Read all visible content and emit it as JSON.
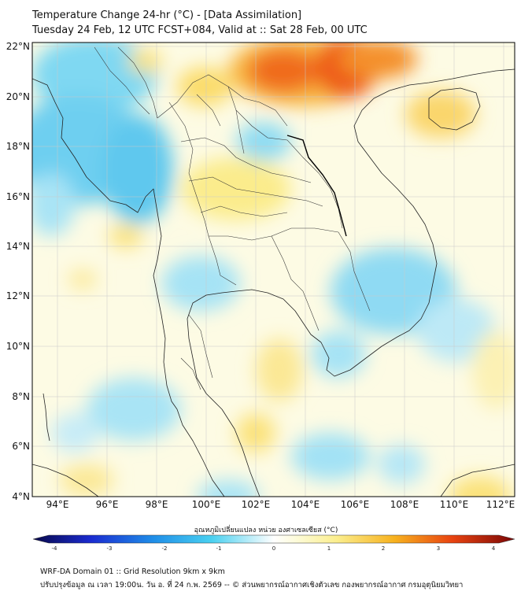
{
  "title": "Temperature Change 24-hr (°C) - [Data Assimilation]",
  "subtitle": "Tuesday 24 Feb, 12 UTC FCST+084, Valid at :: Sat 28 Feb, 00 UTC",
  "map": {
    "lat_labels": [
      "22°N",
      "20°N",
      "18°N",
      "16°N",
      "14°N",
      "12°N",
      "10°N",
      "8°N",
      "6°N",
      "4°N"
    ],
    "lon_labels": [
      "94°E",
      "96°E",
      "98°E",
      "100°E",
      "102°E",
      "104°E",
      "106°E",
      "108°E",
      "110°E",
      "112°E"
    ],
    "lat_range": [
      4,
      22
    ],
    "lon_range": [
      93,
      112.5
    ]
  },
  "colorbar": {
    "label": "อุณหภูมิเปลี่ยนแปลง หน่วย องศาเซลเซียส (°C)",
    "ticks": [
      "-4",
      "-3",
      "-2",
      "-1",
      "0",
      "1",
      "2",
      "3",
      "4"
    ],
    "range": [
      -4,
      4
    ]
  },
  "footer": {
    "line1": "WRF-DA Domain 01 :: Grid Resolution 9km x 9km",
    "line2": "ปรับปรุงข้อมูล ณ เวลา 19:00น. วัน อ. ที่ 24 ก.พ. 2569 -- © ส่วนพยากรณ์อากาศเชิงตัวเลข กองพยากรณ์อากาศ กรมอุตุนิยมวิทยา"
  }
}
